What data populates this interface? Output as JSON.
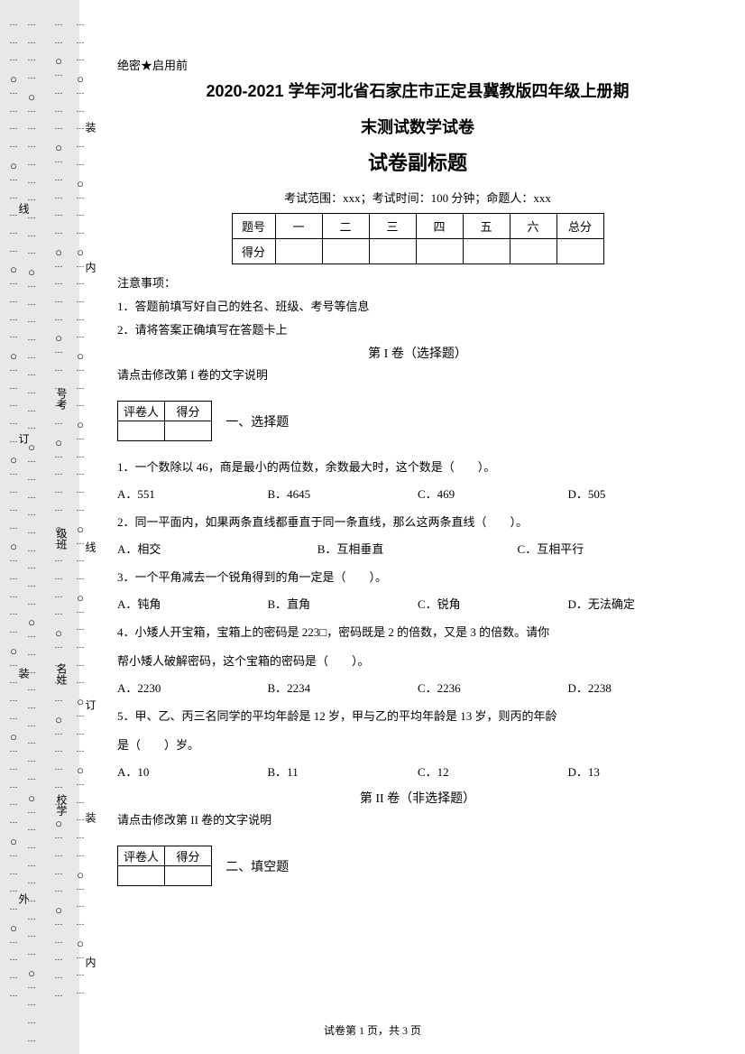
{
  "secret": "绝密★启用前",
  "title1": "2020-2021 学年河北省石家庄市正定县冀教版四年级上册期",
  "title2": "末测试数学试卷",
  "subtitle": "试卷副标题",
  "exam_info": "考试范围：xxx；考试时间：100 分钟；命题人：xxx",
  "score_head": {
    "tihao": "题号",
    "c1": "一",
    "c2": "二",
    "c3": "三",
    "c4": "四",
    "c5": "五",
    "c6": "六",
    "total": "总分"
  },
  "score_row": "得分",
  "notice_h": "注意事项：",
  "notice1": "1．答题前填写好自己的姓名、班级、考号等信息",
  "notice2": "2．请将答案正确填写在答题卡上",
  "vol1": "第 I 卷（选择题）",
  "vol1_note": "请点击修改第 I 卷的文字说明",
  "grade": {
    "pjr": "评卷人",
    "df": "得分"
  },
  "sec1": "一、选择题",
  "q1": "1．一个数除以 46，商是最小的两位数，余数最大时，这个数是（　　）。",
  "q1o": {
    "a": "A．551",
    "b": "B．4645",
    "c": "C．469",
    "d": "D．505"
  },
  "q2": "2．同一平面内，如果两条直线都垂直于同一条直线，那么这两条直线（　　）。",
  "q2o": {
    "a": "A．相交",
    "b": "B．互相垂直",
    "c": "C．互相平行"
  },
  "q3": "3．一个平角减去一个锐角得到的角一定是（　　）。",
  "q3o": {
    "a": "A．钝角",
    "b": "B．直角",
    "c": "C．锐角",
    "d": "D．无法确定"
  },
  "q4a": "4．小矮人开宝箱，宝箱上的密码是 223□，密码既是 2 的倍数，又是 3 的倍数。请你",
  "q4b": "帮小矮人破解密码，这个宝箱的密码是（　　）。",
  "q4o": {
    "a": "A．2230",
    "b": "B．2234",
    "c": "C．2236",
    "d": "D．2238"
  },
  "q5a": "5．甲、乙、丙三名同学的平均年龄是 12 岁，甲与乙的平均年龄是 13 岁，则丙的年龄",
  "q5b": "是（　　）岁。",
  "q5o": {
    "a": "A．10",
    "b": "B．11",
    "c": "C．12",
    "d": "D．13"
  },
  "vol2": "第 II 卷（非选择题）",
  "vol2_note": "请点击修改第 II 卷的文字说明",
  "sec2": "二、填空题",
  "footer": "试卷第 1 页，共 3 页",
  "side": {
    "zhuang": "装",
    "xian": "线",
    "nei": "内",
    "ding": "订",
    "wai": "外",
    "haokaো": "号考",
    "jiban": "级班",
    "mingxing": "名姓",
    "xuexiao": "校学"
  }
}
